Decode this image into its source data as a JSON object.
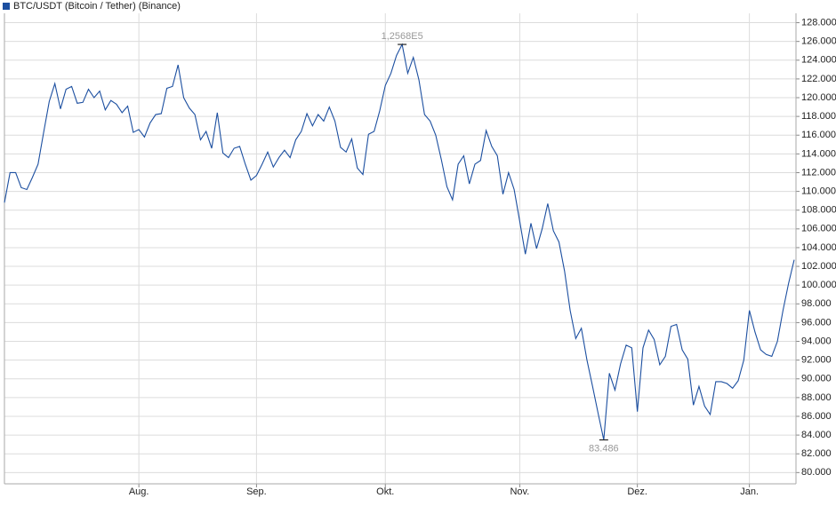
{
  "chart_data": {
    "type": "line",
    "categories": [
      null,
      null,
      null,
      null,
      null,
      null,
      null,
      null,
      null,
      null,
      null,
      null,
      null,
      null,
      null,
      null,
      null,
      null,
      null,
      null,
      null,
      null,
      null,
      null,
      "Aug.",
      null,
      null,
      null,
      null,
      null,
      null,
      null,
      null,
      null,
      null,
      null,
      null,
      null,
      null,
      null,
      null,
      null,
      null,
      null,
      null,
      "Sep.",
      null,
      null,
      null,
      null,
      null,
      null,
      null,
      null,
      null,
      null,
      null,
      null,
      null,
      null,
      null,
      null,
      null,
      null,
      null,
      null,
      null,
      null,
      "Okt.",
      null,
      null,
      null,
      null,
      null,
      null,
      null,
      null,
      null,
      null,
      null,
      null,
      null,
      null,
      null,
      null,
      null,
      null,
      null,
      null,
      null,
      null,
      null,
      "Nov.",
      null,
      null,
      null,
      null,
      null,
      null,
      null,
      null,
      null,
      null,
      null,
      null,
      null,
      null,
      null,
      null,
      null,
      null,
      null,
      null,
      "Dez.",
      null,
      null,
      null,
      null,
      null,
      null,
      null,
      null,
      null,
      null,
      null,
      null,
      null,
      null,
      null,
      null,
      null,
      null,
      null,
      "Jan.",
      null,
      null,
      null,
      null,
      null,
      null,
      null,
      null
    ],
    "series": [
      {
        "name": "BTC/USDT (Bitcoin / Tether) (Binance)",
        "color": "#1c4fa0",
        "values": [
          108800,
          112000,
          112000,
          110400,
          110200,
          111500,
          112900,
          116300,
          119600,
          121500,
          118800,
          120900,
          121200,
          119400,
          119500,
          120900,
          120000,
          120700,
          118700,
          119700,
          119300,
          118400,
          119100,
          116300,
          116600,
          115800,
          117300,
          118200,
          118300,
          121000,
          121200,
          123500,
          120000,
          118900,
          118200,
          115500,
          116400,
          114600,
          118400,
          114100,
          113600,
          114600,
          114800,
          112900,
          111200,
          111700,
          112900,
          114200,
          112600,
          113600,
          114400,
          113600,
          115500,
          116400,
          118300,
          117000,
          118200,
          117500,
          119000,
          117500,
          114700,
          114200,
          115600,
          112500,
          111800,
          116100,
          116400,
          118600,
          121300,
          122600,
          124500,
          125680,
          122600,
          124300,
          121900,
          118200,
          117500,
          116000,
          113400,
          110500,
          109100,
          112900,
          113800,
          110800,
          112900,
          113300,
          116500,
          114800,
          113800,
          109700,
          112000,
          110200,
          106800,
          103300,
          106600,
          103900,
          106000,
          108700,
          105800,
          104600,
          101500,
          97300,
          94300,
          95400,
          92000,
          89200,
          86300,
          83486,
          90600,
          88800,
          91600,
          93600,
          93300,
          86500,
          93300,
          95200,
          94200,
          91500,
          92400,
          95600,
          95800,
          93100,
          92100,
          87200,
          89200,
          87100,
          86200,
          89700,
          89700,
          89500,
          89000,
          89800,
          92000,
          97300,
          95000,
          93100,
          92600,
          92400,
          94000,
          97300,
          100200,
          102700
        ],
        "value_labels": [
          null,
          null,
          null,
          null,
          null,
          null,
          null,
          null,
          null,
          null,
          null,
          null,
          null,
          null,
          null,
          null,
          null,
          null,
          null,
          null,
          null,
          null,
          null,
          null,
          null,
          null,
          null,
          null,
          null,
          null,
          null,
          null,
          null,
          null,
          null,
          null,
          null,
          null,
          null,
          null,
          null,
          null,
          null,
          null,
          null,
          null,
          null,
          null,
          null,
          null,
          null,
          null,
          null,
          null,
          null,
          null,
          null,
          null,
          null,
          null,
          null,
          null,
          null,
          null,
          null,
          null,
          null,
          null,
          null,
          null,
          null,
          "1,2568E5",
          null,
          null,
          null,
          null,
          null,
          null,
          null,
          null,
          null,
          null,
          null,
          null,
          null,
          null,
          null,
          null,
          null,
          null,
          null,
          null,
          null,
          null,
          null,
          null,
          null,
          null,
          null,
          null,
          null,
          null,
          null,
          null,
          null,
          null,
          null,
          "83.486",
          null,
          null,
          null,
          null,
          null,
          null,
          null,
          null,
          null,
          null,
          null,
          null,
          null,
          null,
          null,
          null,
          null,
          null,
          null,
          null,
          null,
          null,
          null,
          null,
          null,
          null,
          null,
          null,
          null,
          null,
          null,
          null,
          null,
          null
        ]
      }
    ],
    "ylim": [
      78800,
      129000
    ],
    "yticks": [
      {
        "value": 80000,
        "label": "80.000"
      },
      {
        "value": 82000,
        "label": "82.000"
      },
      {
        "value": 84000,
        "label": "84.000"
      },
      {
        "value": 86000,
        "label": "86.000"
      },
      {
        "value": 88000,
        "label": "88.000"
      },
      {
        "value": 90000,
        "label": "90.000"
      },
      {
        "value": 92000,
        "label": "92.000"
      },
      {
        "value": 94000,
        "label": "94.000"
      },
      {
        "value": 96000,
        "label": "96.000"
      },
      {
        "value": 98000,
        "label": "98.000"
      },
      {
        "value": 100000,
        "label": "100.000"
      },
      {
        "value": 102000,
        "label": "102.000"
      },
      {
        "value": 104000,
        "label": "104.000"
      },
      {
        "value": 106000,
        "label": "106.000"
      },
      {
        "value": 108000,
        "label": "108.000"
      },
      {
        "value": 110000,
        "label": "110.000"
      },
      {
        "value": 112000,
        "label": "112.000"
      },
      {
        "value": 114000,
        "label": "114.000"
      },
      {
        "value": 116000,
        "label": "116.000"
      },
      {
        "value": 118000,
        "label": "118.000"
      },
      {
        "value": 120000,
        "label": "120.000"
      },
      {
        "value": 122000,
        "label": "122.000"
      },
      {
        "value": 124000,
        "label": "124.000"
      },
      {
        "value": 126000,
        "label": "126.000"
      },
      {
        "value": 128000,
        "label": "128.000"
      }
    ],
    "grid": true,
    "legend": "top-left"
  }
}
